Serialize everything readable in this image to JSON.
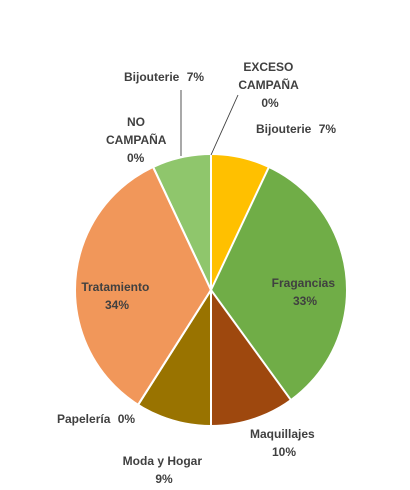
{
  "chart_data": {
    "type": "pie",
    "title": "",
    "slices": [
      {
        "label": "Bijouterie",
        "value": 7,
        "value_text": "7%",
        "color": "#FFC000"
      },
      {
        "label": "Fragancias",
        "value": 33,
        "value_text": "33%",
        "color": "#70AD47"
      },
      {
        "label": "Maquillajes",
        "value": 10,
        "value_text": "10%",
        "color": "#9E480E"
      },
      {
        "label": "Moda y Hogar",
        "value": 9,
        "value_text": "9%",
        "color": "#997300"
      },
      {
        "label": "Papelería",
        "value": 0,
        "value_text": "0%",
        "color": "#7F6000"
      },
      {
        "label": "Tratamiento",
        "value": 34,
        "value_text": "34%",
        "color": "#F1975A"
      },
      {
        "label": "NO CAMPAÑA",
        "value": 0,
        "value_text": "0%",
        "color": "#264478"
      },
      {
        "label": "Bijouterie",
        "value": 7,
        "value_text": "7%",
        "color": "#8FC66C"
      },
      {
        "label": "EXCESO CAMPAÑA",
        "value": 0,
        "value_text": "0%",
        "color": "#A5A5A5"
      }
    ],
    "legend": "none"
  }
}
